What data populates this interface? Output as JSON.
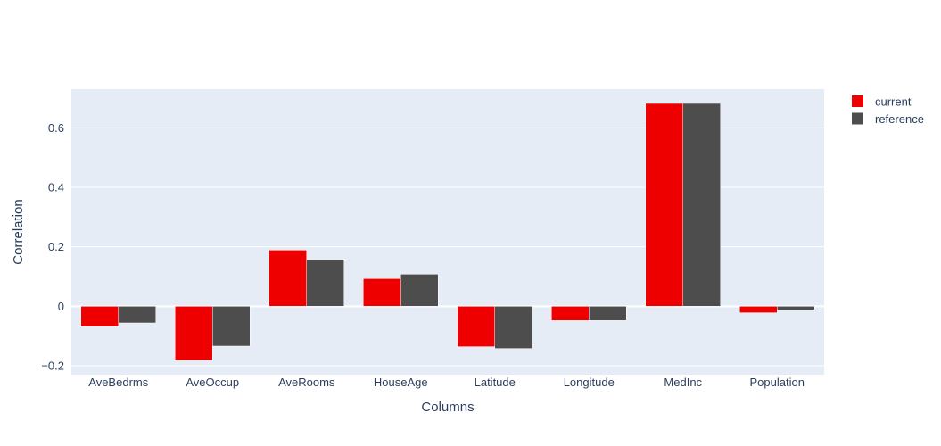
{
  "chart_data": {
    "type": "bar",
    "categories": [
      "AveBedrms",
      "AveOccup",
      "AveRooms",
      "HouseAge",
      "Latitude",
      "Longitude",
      "MedInc",
      "Population"
    ],
    "series": [
      {
        "name": "current",
        "color": "#ee0000",
        "values": [
          -0.068,
          -0.183,
          0.189,
          0.093,
          -0.136,
          -0.048,
          0.682,
          -0.022
        ]
      },
      {
        "name": "reference",
        "color": "#4d4d4d",
        "values": [
          -0.056,
          -0.134,
          0.158,
          0.108,
          -0.142,
          -0.048,
          0.682,
          -0.012
        ]
      }
    ],
    "xlabel": "Columns",
    "ylabel": "Correlation",
    "ylim": [
      -0.23,
      0.73
    ],
    "yticks": [
      -0.2,
      0,
      0.2,
      0.4,
      0.6
    ],
    "ytick_labels": [
      "−0.2",
      "0",
      "0.2",
      "0.4",
      "0.6"
    ],
    "grid": true,
    "legend_position": "top-right",
    "plot_background": "#e5ecf6"
  }
}
